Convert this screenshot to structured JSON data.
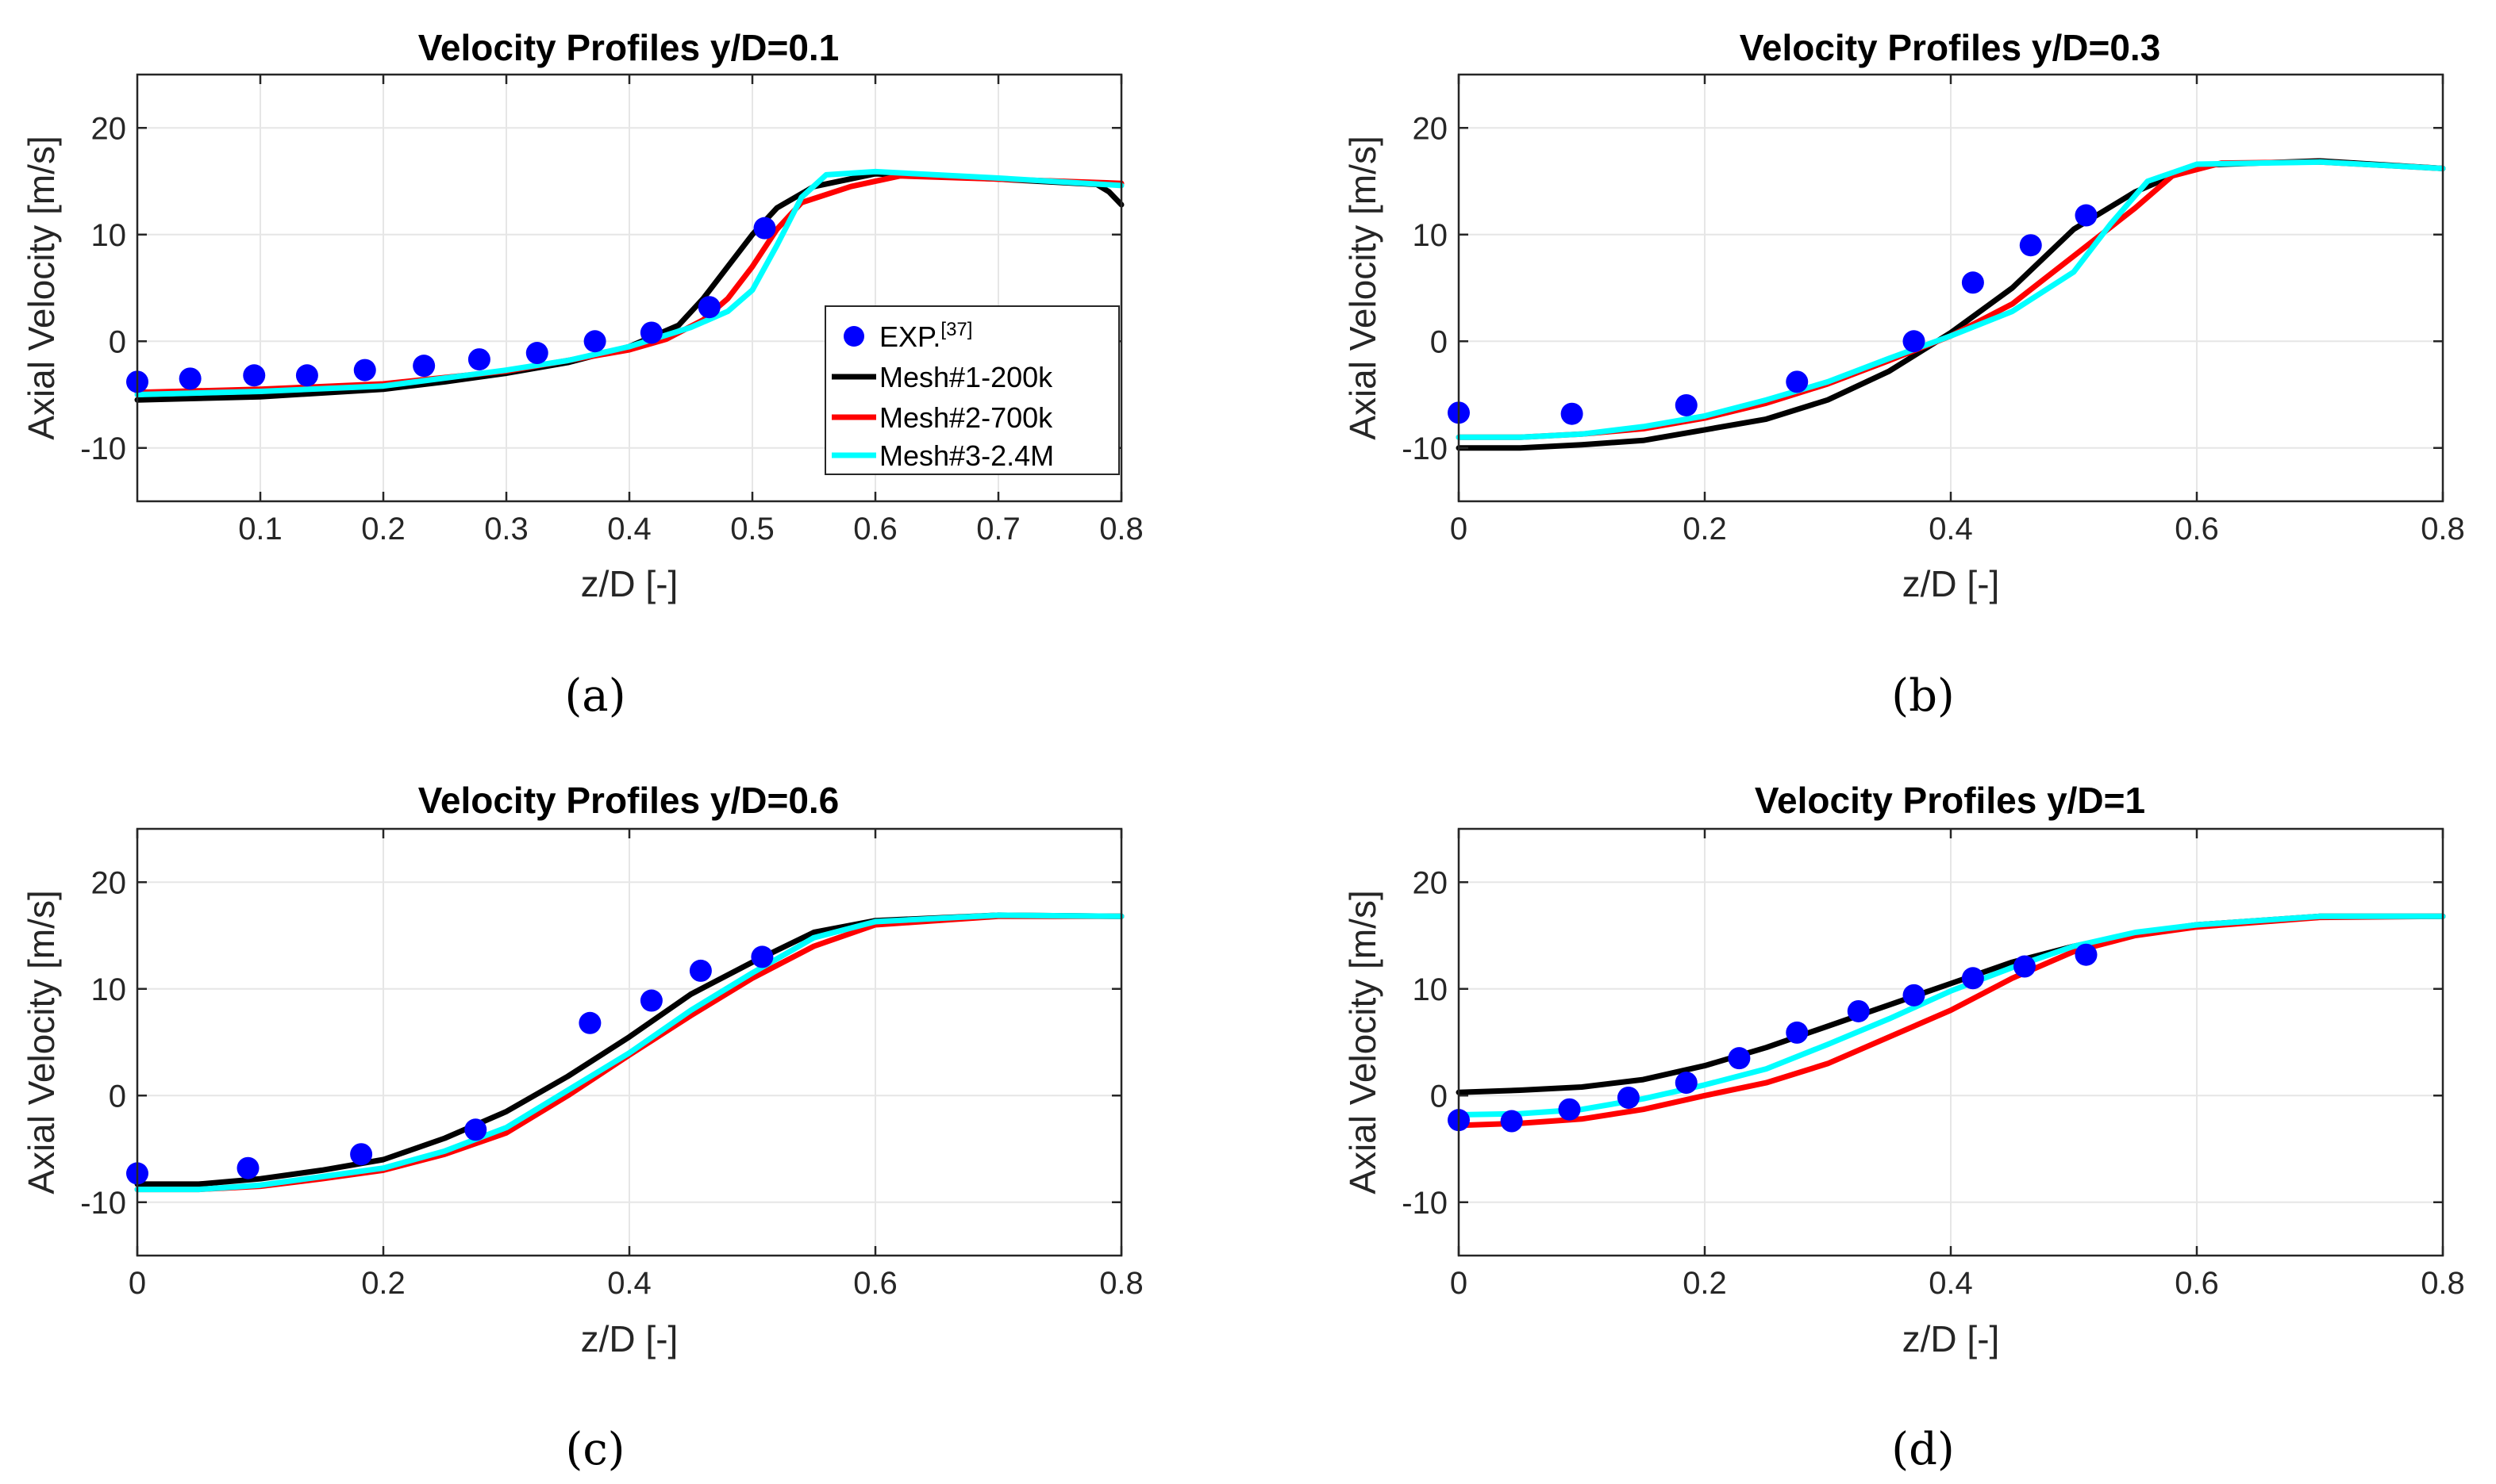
{
  "figure": {
    "captions": [
      "(a)",
      "(b)",
      "(c)",
      "(d)"
    ]
  },
  "legend": {
    "exp_label": "EXP.",
    "exp_ref": "[37]",
    "mesh1_label": "Mesh#1-200k",
    "mesh2_label": "Mesh#2-700k",
    "mesh3_label": "Mesh#3-2.4M"
  },
  "colors": {
    "exp": "#0000ff",
    "mesh1": "#000000",
    "mesh2": "#ff0000",
    "mesh3": "#00ffff",
    "grid": "#e6e6e6"
  },
  "chart_data": [
    {
      "type": "line",
      "title": "Velocity Profiles y/D=0.1",
      "xlabel": "z/D [-]",
      "ylabel": "Axial Velocity [m/s]",
      "xlim": [
        0,
        0.8
      ],
      "ylim": [
        -15,
        25
      ],
      "xticks": [
        0.1,
        0.2,
        0.3,
        0.4,
        0.5,
        0.6,
        0.7,
        0.8
      ],
      "xtick_labels": [
        "0.1",
        "0.2",
        "0.3",
        "0.4",
        "0.5",
        "0.6",
        "0.7",
        "0.8"
      ],
      "yticks": [
        -10,
        0,
        10,
        20
      ],
      "ytick_labels": [
        "-10",
        "0",
        "10",
        "20"
      ],
      "grid": true,
      "legend_position": "center-right",
      "series": [
        {
          "name": "EXP.[37]",
          "kind": "scatter",
          "x": [
            0.0,
            0.043,
            0.095,
            0.138,
            0.185,
            0.233,
            0.278,
            0.325,
            0.372,
            0.418,
            0.465,
            0.51
          ],
          "y": [
            -3.8,
            -3.5,
            -3.2,
            -3.2,
            -2.7,
            -2.3,
            -1.7,
            -1.1,
            0.0,
            0.8,
            3.2,
            10.6
          ]
        },
        {
          "name": "Mesh#1-200k",
          "kind": "line",
          "x": [
            0.0,
            0.1,
            0.2,
            0.25,
            0.3,
            0.35,
            0.4,
            0.44,
            0.46,
            0.48,
            0.5,
            0.52,
            0.55,
            0.6,
            0.7,
            0.78,
            0.79,
            0.8
          ],
          "y": [
            -5.5,
            -5.2,
            -4.5,
            -3.8,
            -3.0,
            -2.0,
            -0.5,
            1.5,
            4.0,
            7.0,
            10.0,
            12.5,
            14.5,
            15.7,
            15.2,
            14.7,
            14.0,
            12.8
          ]
        },
        {
          "name": "Mesh#2-700k",
          "kind": "line",
          "x": [
            0.0,
            0.1,
            0.2,
            0.3,
            0.35,
            0.4,
            0.43,
            0.46,
            0.48,
            0.5,
            0.52,
            0.54,
            0.58,
            0.62,
            0.7,
            0.8
          ],
          "y": [
            -4.8,
            -4.5,
            -4.0,
            -2.8,
            -1.8,
            -0.8,
            0.2,
            2.0,
            4.0,
            7.0,
            10.5,
            13.0,
            14.5,
            15.5,
            15.2,
            14.8
          ]
        },
        {
          "name": "Mesh#3-2.4M",
          "kind": "line",
          "x": [
            0.0,
            0.1,
            0.2,
            0.3,
            0.35,
            0.4,
            0.45,
            0.48,
            0.5,
            0.52,
            0.54,
            0.56,
            0.6,
            0.7,
            0.8
          ],
          "y": [
            -5.0,
            -4.7,
            -4.2,
            -2.7,
            -1.8,
            -0.5,
            1.3,
            2.8,
            4.8,
            9.0,
            13.5,
            15.6,
            15.9,
            15.3,
            14.6
          ]
        }
      ]
    },
    {
      "type": "line",
      "title": "Velocity Profiles y/D=0.3",
      "xlabel": "z/D [-]",
      "ylabel": "Axial Velocity [m/s]",
      "xlim": [
        0,
        0.8
      ],
      "ylim": [
        -15,
        25
      ],
      "xticks": [
        0,
        0.2,
        0.4,
        0.6,
        0.8
      ],
      "xtick_labels": [
        "0",
        "0.2",
        "0.4",
        "0.6",
        "0.8"
      ],
      "yticks": [
        -10,
        0,
        10,
        20
      ],
      "ytick_labels": [
        "-10",
        "0",
        "10",
        "20"
      ],
      "grid": true,
      "series": [
        {
          "name": "EXP.[37]",
          "kind": "scatter",
          "x": [
            0.0,
            0.092,
            0.185,
            0.275,
            0.37,
            0.418,
            0.465,
            0.51
          ],
          "y": [
            -6.7,
            -6.8,
            -6.0,
            -3.8,
            0.0,
            5.5,
            9.0,
            11.8
          ]
        },
        {
          "name": "Mesh#1-200k",
          "kind": "line",
          "x": [
            0.0,
            0.05,
            0.1,
            0.15,
            0.2,
            0.25,
            0.3,
            0.35,
            0.4,
            0.45,
            0.5,
            0.55,
            0.6,
            0.7,
            0.8
          ],
          "y": [
            -10.0,
            -10.0,
            -9.7,
            -9.3,
            -8.3,
            -7.3,
            -5.5,
            -2.8,
            0.8,
            5.0,
            10.5,
            14.0,
            16.5,
            16.9,
            16.2
          ]
        },
        {
          "name": "Mesh#2-700k",
          "kind": "line",
          "x": [
            0.0,
            0.05,
            0.1,
            0.15,
            0.2,
            0.25,
            0.3,
            0.35,
            0.4,
            0.45,
            0.5,
            0.55,
            0.58,
            0.62,
            0.7,
            0.8
          ],
          "y": [
            -9.0,
            -9.0,
            -8.7,
            -8.2,
            -7.2,
            -5.8,
            -4.0,
            -1.8,
            0.5,
            3.5,
            8.0,
            12.5,
            15.5,
            16.7,
            16.8,
            16.2
          ]
        },
        {
          "name": "Mesh#3-2.4M",
          "kind": "line",
          "x": [
            0.0,
            0.05,
            0.1,
            0.15,
            0.2,
            0.25,
            0.3,
            0.35,
            0.4,
            0.45,
            0.5,
            0.53,
            0.56,
            0.6,
            0.7,
            0.8
          ],
          "y": [
            -9.0,
            -9.0,
            -8.7,
            -8.0,
            -7.0,
            -5.5,
            -3.8,
            -1.6,
            0.5,
            2.8,
            6.5,
            11.0,
            15.0,
            16.6,
            16.8,
            16.2
          ]
        }
      ]
    },
    {
      "type": "line",
      "title": "Velocity Profiles y/D=0.6",
      "xlabel": "z/D [-]",
      "ylabel": "Axial Velocity [m/s]",
      "xlim": [
        0,
        0.8
      ],
      "ylim": [
        -15,
        25
      ],
      "xticks": [
        0,
        0.2,
        0.4,
        0.6,
        0.8
      ],
      "xtick_labels": [
        "0",
        "0.2",
        "0.4",
        "0.6",
        "0.8"
      ],
      "yticks": [
        -10,
        0,
        10,
        20
      ],
      "ytick_labels": [
        "-10",
        "0",
        "10",
        "20"
      ],
      "grid": true,
      "series": [
        {
          "name": "EXP.[37]",
          "kind": "scatter",
          "x": [
            0.0,
            0.09,
            0.182,
            0.275,
            0.368,
            0.418,
            0.458,
            0.508
          ],
          "y": [
            -7.3,
            -6.8,
            -5.5,
            -3.2,
            6.8,
            8.9,
            11.7,
            13.0
          ]
        },
        {
          "name": "Mesh#1-200k",
          "kind": "line",
          "x": [
            0.0,
            0.05,
            0.1,
            0.15,
            0.2,
            0.25,
            0.3,
            0.35,
            0.4,
            0.45,
            0.5,
            0.55,
            0.6,
            0.7,
            0.8
          ],
          "y": [
            -8.3,
            -8.3,
            -7.8,
            -7.0,
            -6.0,
            -4.0,
            -1.5,
            1.8,
            5.5,
            9.5,
            12.5,
            15.3,
            16.4,
            16.9,
            16.8
          ]
        },
        {
          "name": "Mesh#2-700k",
          "kind": "line",
          "x": [
            0.0,
            0.05,
            0.1,
            0.15,
            0.2,
            0.25,
            0.3,
            0.35,
            0.4,
            0.45,
            0.5,
            0.55,
            0.6,
            0.7,
            0.8
          ],
          "y": [
            -8.8,
            -8.8,
            -8.5,
            -7.8,
            -7.0,
            -5.5,
            -3.5,
            0.0,
            3.8,
            7.5,
            11.0,
            14.0,
            16.0,
            16.8,
            16.8
          ]
        },
        {
          "name": "Mesh#3-2.4M",
          "kind": "line",
          "x": [
            0.0,
            0.05,
            0.1,
            0.15,
            0.2,
            0.25,
            0.3,
            0.35,
            0.4,
            0.45,
            0.5,
            0.55,
            0.6,
            0.7,
            0.8
          ],
          "y": [
            -8.8,
            -8.8,
            -8.4,
            -7.6,
            -6.8,
            -5.2,
            -3.0,
            0.5,
            4.0,
            8.0,
            11.5,
            14.8,
            16.3,
            16.9,
            16.8
          ]
        }
      ]
    },
    {
      "type": "line",
      "title": "Velocity Profiles y/D=1",
      "xlabel": "z/D [-]",
      "ylabel": "Axial Velocity [m/s]",
      "xlim": [
        0,
        0.8
      ],
      "ylim": [
        -15,
        25
      ],
      "xticks": [
        0,
        0.2,
        0.4,
        0.6,
        0.8
      ],
      "xtick_labels": [
        "0",
        "0.2",
        "0.4",
        "0.6",
        "0.8"
      ],
      "yticks": [
        -10,
        0,
        10,
        20
      ],
      "ytick_labels": [
        "-10",
        "0",
        "10",
        "20"
      ],
      "grid": true,
      "series": [
        {
          "name": "EXP.[37]",
          "kind": "scatter",
          "x": [
            0.0,
            0.043,
            0.09,
            0.138,
            0.185,
            0.228,
            0.275,
            0.325,
            0.37,
            0.418,
            0.46,
            0.51
          ],
          "y": [
            -2.3,
            -2.4,
            -1.3,
            -0.2,
            1.2,
            3.5,
            5.9,
            7.9,
            9.4,
            11.0,
            12.1,
            13.2
          ]
        },
        {
          "name": "Mesh#1-200k",
          "kind": "line",
          "x": [
            0.0,
            0.05,
            0.1,
            0.15,
            0.2,
            0.25,
            0.3,
            0.35,
            0.4,
            0.45,
            0.5,
            0.55,
            0.6,
            0.7,
            0.8
          ],
          "y": [
            0.3,
            0.5,
            0.8,
            1.5,
            2.8,
            4.5,
            6.5,
            8.5,
            10.5,
            12.5,
            14.0,
            15.2,
            16.0,
            16.8,
            16.8
          ]
        },
        {
          "name": "Mesh#2-700k",
          "kind": "line",
          "x": [
            0.0,
            0.05,
            0.1,
            0.15,
            0.2,
            0.25,
            0.3,
            0.35,
            0.4,
            0.45,
            0.5,
            0.55,
            0.6,
            0.7,
            0.8
          ],
          "y": [
            -2.8,
            -2.6,
            -2.2,
            -1.3,
            0.0,
            1.2,
            3.0,
            5.5,
            8.0,
            11.0,
            13.5,
            15.0,
            15.8,
            16.7,
            16.8
          ]
        },
        {
          "name": "Mesh#3-2.4M",
          "kind": "line",
          "x": [
            0.0,
            0.05,
            0.1,
            0.15,
            0.2,
            0.25,
            0.3,
            0.35,
            0.4,
            0.45,
            0.5,
            0.55,
            0.6,
            0.7,
            0.8
          ],
          "y": [
            -1.8,
            -1.7,
            -1.3,
            -0.3,
            1.0,
            2.5,
            4.8,
            7.2,
            9.8,
            12.0,
            14.0,
            15.3,
            16.0,
            16.8,
            16.8
          ]
        }
      ]
    }
  ]
}
